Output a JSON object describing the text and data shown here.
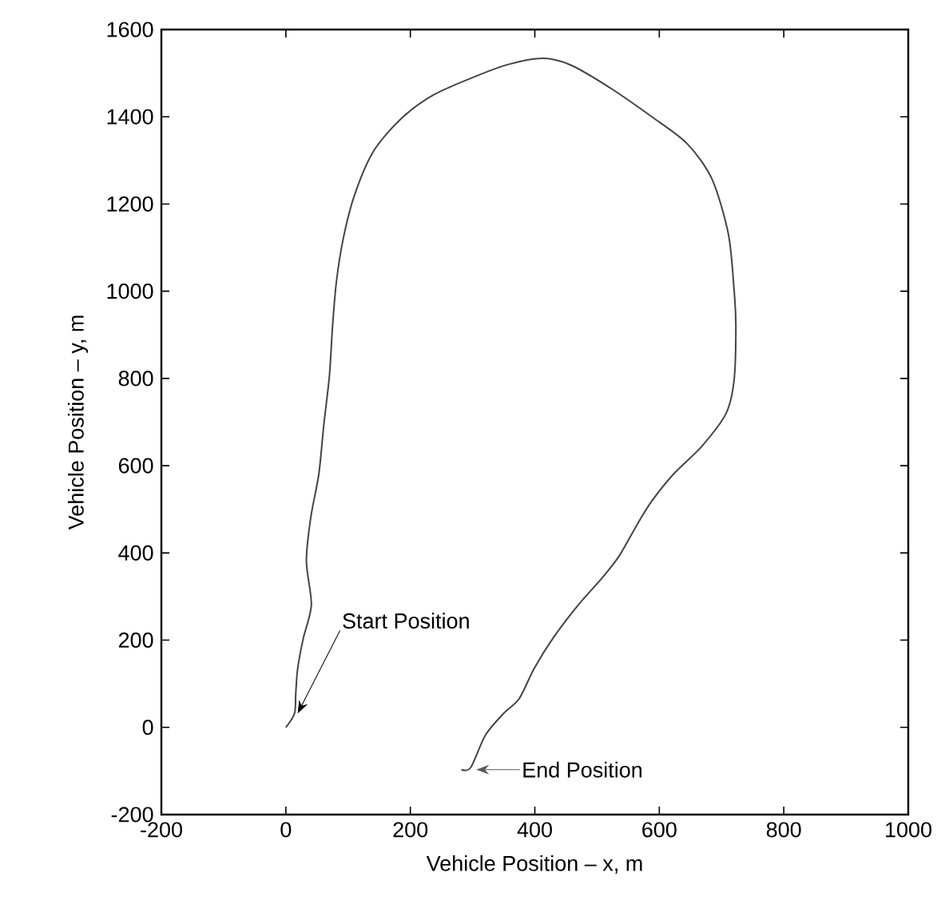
{
  "chart_data": {
    "type": "line",
    "xlabel": "Vehicle Position – x, m",
    "ylabel": "Vehicle Position – y, m",
    "xlim": [
      -200,
      1000
    ],
    "ylim": [
      -200,
      1600
    ],
    "xticks": [
      -200,
      0,
      200,
      400,
      600,
      800,
      1000
    ],
    "yticks": [
      -200,
      0,
      200,
      400,
      600,
      800,
      1000,
      1200,
      1400,
      1600
    ],
    "grid": false,
    "marker": "none",
    "line_style": "solid",
    "series": [
      {
        "color": "#444444",
        "x": [
          0,
          14,
          16,
          19,
          28,
          41,
          33,
          40,
          53,
          61,
          70,
          75,
          81,
          92,
          110,
          140,
          184,
          237,
          307,
          360,
          413,
          457,
          518,
          588,
          645,
          685,
          711,
          720,
          723,
          720,
          707,
          668,
          623,
          588,
          566,
          536,
          509,
          470,
          429,
          399,
          375,
          350,
          321,
          297,
          282
        ],
        "values": [
          0,
          32,
          80,
          135,
          204,
          281,
          381,
          481,
          581,
          694,
          806,
          919,
          1019,
          1119,
          1219,
          1319,
          1394,
          1450,
          1494,
          1521,
          1534,
          1519,
          1469,
          1400,
          1338,
          1256,
          1131,
          1006,
          919,
          794,
          719,
          644,
          581,
          519,
          469,
          394,
          344,
          281,
          204,
          135,
          66,
          32,
          -17,
          -92,
          -97
        ]
      }
    ],
    "annotations": [
      {
        "text": "Start Position",
        "x": 19,
        "y": 32
      },
      {
        "text": "End Position",
        "x": 306,
        "y": -97
      }
    ]
  }
}
